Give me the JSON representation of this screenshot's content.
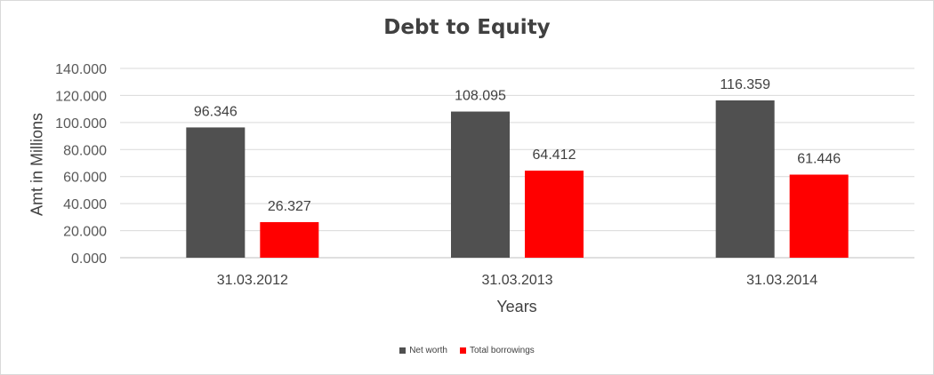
{
  "chart_data": {
    "type": "bar",
    "title": "Debt to Equity",
    "xlabel": "Years",
    "ylabel": "Amt in Millions",
    "categories": [
      "31.03.2012",
      "31.03.2013",
      "31.03.2014"
    ],
    "series": [
      {
        "name": "Net worth",
        "values": [
          96.346,
          108.095,
          116.359
        ],
        "labels": [
          "96.346",
          "108.095",
          "116.359"
        ],
        "color": "#505050"
      },
      {
        "name": "Total borrowings",
        "values": [
          26.327,
          64.412,
          61.446
        ],
        "labels": [
          "26.327",
          "64.412",
          "61.446"
        ],
        "color": "#ff0000"
      }
    ],
    "ylim": [
      0,
      140
    ],
    "yticks": [
      "0.000",
      "20.000",
      "40.000",
      "60.000",
      "80.000",
      "100.000",
      "120.000",
      "140.000"
    ],
    "grid": true,
    "legend_position": "bottom"
  }
}
